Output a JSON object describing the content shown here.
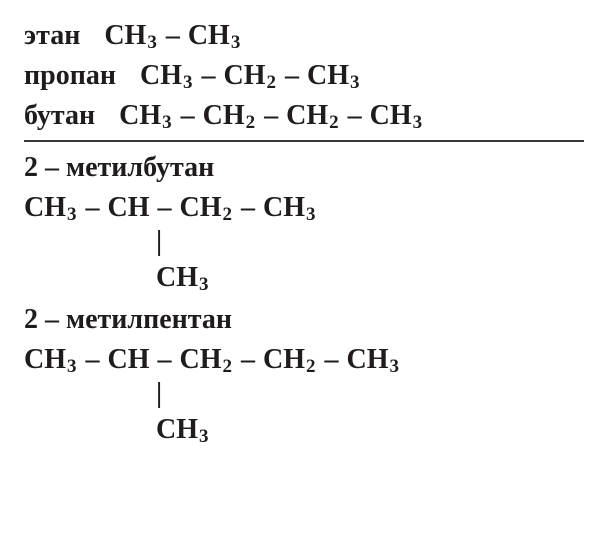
{
  "colors": {
    "text": "#201c1c",
    "background": "#ffffff",
    "divider": "#383838"
  },
  "typography": {
    "name_fontsize": 28,
    "formula_fontsize": 28,
    "subscript_fontsize": 19,
    "font_weight": "bold",
    "font_family": "Times New Roman"
  },
  "compounds": {
    "ethane": {
      "name": "этан",
      "formula": {
        "frags": [
          "CH",
          "CH"
        ],
        "subs": [
          "3",
          "3"
        ],
        "seps": [
          "–"
        ]
      }
    },
    "propane": {
      "name": "пропан",
      "formula": {
        "frags": [
          "CH",
          "CH",
          "CH"
        ],
        "subs": [
          "3",
          "2",
          "3"
        ],
        "seps": [
          "–",
          "–"
        ]
      }
    },
    "butane": {
      "name": "бутан",
      "formula": {
        "frags": [
          "CH",
          "CH",
          "CH",
          "CH"
        ],
        "subs": [
          "3",
          "2",
          "2",
          "3"
        ],
        "seps": [
          "–",
          "–",
          "–"
        ]
      }
    },
    "methylbutane": {
      "name": "2 – метилбутан",
      "main": {
        "frags": [
          "CH",
          "CH",
          "CH",
          "CH"
        ],
        "subs": [
          "3",
          "",
          "2",
          "3"
        ],
        "seps": [
          "–",
          "–",
          "–"
        ]
      },
      "branch": {
        "bond": "|",
        "frag": "CH",
        "sub": "3"
      }
    },
    "methylpentane": {
      "name": "2 – метилпентан",
      "main": {
        "frags": [
          "CH",
          "CH",
          "CH",
          "CH",
          "CH"
        ],
        "subs": [
          "3",
          "",
          "2",
          "2",
          "3"
        ],
        "seps": [
          "–",
          "–",
          "–",
          "–"
        ]
      },
      "branch": {
        "bond": "|",
        "frag": "CH",
        "sub": "3"
      }
    }
  }
}
